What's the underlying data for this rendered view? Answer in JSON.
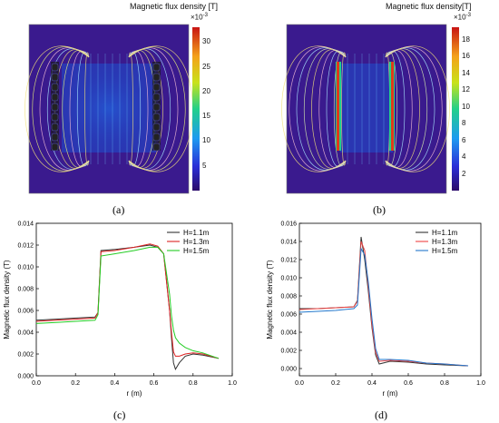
{
  "panels": [
    {
      "label": "(a)",
      "colorbar": {
        "title": "Magnetic flux density [T]",
        "exponent_base": "×10",
        "exponent_power": "-3",
        "ticks": [
          "30",
          "25",
          "20",
          "15",
          "10",
          "5"
        ],
        "tick_values": [
          30,
          25,
          20,
          15,
          10,
          5
        ],
        "range": [
          0,
          33
        ]
      }
    },
    {
      "label": "(b)",
      "colorbar": {
        "title": "Magnetic flux density[T]",
        "exponent_base": "×10",
        "exponent_power": "-3",
        "ticks": [
          "18",
          "16",
          "14",
          "12",
          "10",
          "8",
          "6",
          "4",
          "2"
        ],
        "tick_values": [
          18,
          16,
          14,
          12,
          10,
          8,
          6,
          4,
          2
        ],
        "range": [
          0,
          19.5
        ]
      }
    },
    {
      "label": "(c)"
    },
    {
      "label": "(d)"
    }
  ],
  "chart_data": [
    {
      "type": "line",
      "panel": "(c)",
      "xlabel": "r (m)",
      "ylabel": "Magnetic flux density (T)",
      "xlim": [
        0.0,
        1.0
      ],
      "ylim": [
        0.0,
        0.014
      ],
      "xticks": [
        "0.0",
        "0.2",
        "0.4",
        "0.6",
        "0.8",
        "1.0"
      ],
      "yticks": [
        "0.000",
        "0.002",
        "0.004",
        "0.006",
        "0.008",
        "0.010",
        "0.012",
        "0.014"
      ],
      "legend_position": "top-right",
      "series": [
        {
          "name": "H=1.1m",
          "color": "#333333",
          "x": [
            0.0,
            0.1,
            0.2,
            0.3,
            0.315,
            0.33,
            0.4,
            0.5,
            0.58,
            0.62,
            0.65,
            0.68,
            0.69,
            0.7,
            0.71,
            0.73,
            0.76,
            0.8,
            0.85,
            0.93
          ],
          "y": [
            0.0051,
            0.0052,
            0.0053,
            0.0054,
            0.0058,
            0.0115,
            0.0116,
            0.0118,
            0.012,
            0.0118,
            0.0112,
            0.006,
            0.0035,
            0.0012,
            0.0006,
            0.0012,
            0.0018,
            0.002,
            0.0019,
            0.0016
          ]
        },
        {
          "name": "H=1.3m",
          "color": "#dd2222",
          "x": [
            0.0,
            0.1,
            0.2,
            0.3,
            0.315,
            0.33,
            0.4,
            0.5,
            0.58,
            0.62,
            0.65,
            0.68,
            0.69,
            0.7,
            0.71,
            0.73,
            0.76,
            0.8,
            0.85,
            0.93
          ],
          "y": [
            0.005,
            0.0051,
            0.0052,
            0.0053,
            0.0058,
            0.0114,
            0.0115,
            0.0118,
            0.0121,
            0.0119,
            0.0112,
            0.006,
            0.004,
            0.0022,
            0.0018,
            0.0018,
            0.002,
            0.0021,
            0.002,
            0.0016
          ]
        },
        {
          "name": "H=1.5m",
          "color": "#22cc22",
          "x": [
            0.0,
            0.1,
            0.2,
            0.3,
            0.315,
            0.33,
            0.4,
            0.5,
            0.58,
            0.62,
            0.65,
            0.68,
            0.69,
            0.7,
            0.71,
            0.73,
            0.76,
            0.8,
            0.85,
            0.93
          ],
          "y": [
            0.0048,
            0.0049,
            0.005,
            0.0051,
            0.0056,
            0.011,
            0.0112,
            0.0115,
            0.0118,
            0.0118,
            0.0112,
            0.0075,
            0.0055,
            0.0042,
            0.0035,
            0.003,
            0.0026,
            0.0023,
            0.0021,
            0.0016
          ]
        }
      ]
    },
    {
      "type": "line",
      "panel": "(d)",
      "xlabel": "r (m)",
      "ylabel": "Magnetic flux density (T)",
      "xlim": [
        0.0,
        1.0
      ],
      "ylim": [
        -0.0008,
        0.016
      ],
      "xticks": [
        "0.0",
        "0.2",
        "0.4",
        "0.6",
        "0.8",
        "1.0"
      ],
      "yticks": [
        "0.000",
        "0.002",
        "0.004",
        "0.006",
        "0.008",
        "0.010",
        "0.012",
        "0.014",
        "0.016"
      ],
      "legend_position": "top-right",
      "series": [
        {
          "name": "H=1.1m",
          "color": "#333333",
          "x": [
            0.0,
            0.1,
            0.2,
            0.3,
            0.32,
            0.34,
            0.36,
            0.38,
            0.4,
            0.42,
            0.44,
            0.5,
            0.6,
            0.7,
            0.8,
            0.93
          ],
          "y": [
            0.0066,
            0.0066,
            0.0067,
            0.0068,
            0.0075,
            0.0145,
            0.012,
            0.0085,
            0.0045,
            0.0015,
            0.0005,
            0.0008,
            0.0007,
            0.0005,
            0.0004,
            0.0003
          ]
        },
        {
          "name": "H=1.3m",
          "color": "#ee4444",
          "x": [
            0.0,
            0.1,
            0.2,
            0.3,
            0.32,
            0.34,
            0.36,
            0.38,
            0.4,
            0.42,
            0.44,
            0.5,
            0.6,
            0.7,
            0.8,
            0.93
          ],
          "y": [
            0.0065,
            0.0066,
            0.0067,
            0.0068,
            0.0074,
            0.014,
            0.013,
            0.009,
            0.0048,
            0.0018,
            0.0008,
            0.0009,
            0.0008,
            0.0006,
            0.0005,
            0.0003
          ]
        },
        {
          "name": "H=1.5m",
          "color": "#2277cc",
          "x": [
            0.0,
            0.1,
            0.2,
            0.3,
            0.32,
            0.34,
            0.36,
            0.38,
            0.4,
            0.42,
            0.44,
            0.5,
            0.6,
            0.7,
            0.8,
            0.93
          ],
          "y": [
            0.0062,
            0.0063,
            0.0064,
            0.0066,
            0.007,
            0.0132,
            0.0125,
            0.0095,
            0.0055,
            0.0022,
            0.001,
            0.001,
            0.0009,
            0.0006,
            0.0005,
            0.0003
          ]
        }
      ]
    }
  ]
}
